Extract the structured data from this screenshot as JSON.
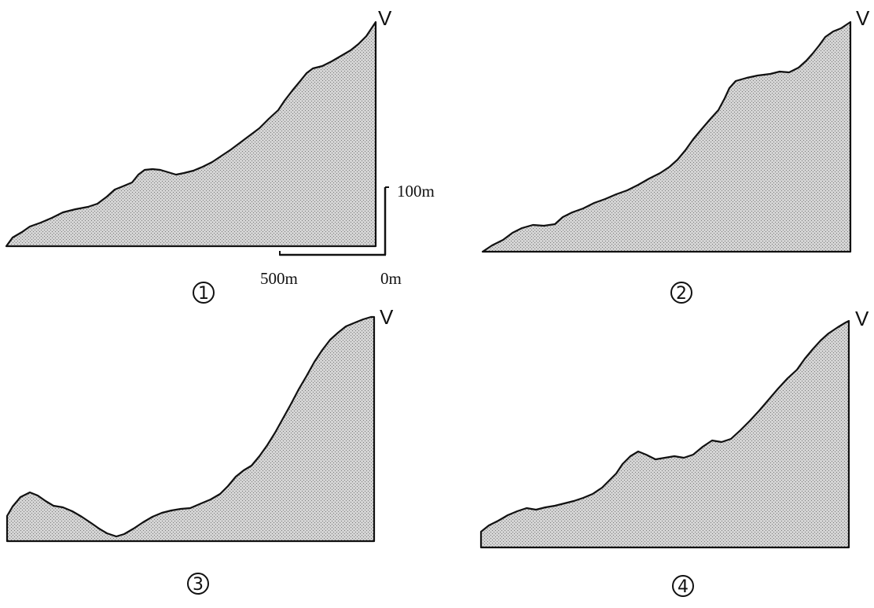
{
  "summit_label": "V",
  "scale": {
    "vertical_label": "100m",
    "horizontal_label": "500m",
    "origin_label": "0m"
  },
  "profiles": [
    {
      "label": "1"
    },
    {
      "label": "2"
    },
    {
      "label": "3"
    },
    {
      "label": "4"
    }
  ]
}
